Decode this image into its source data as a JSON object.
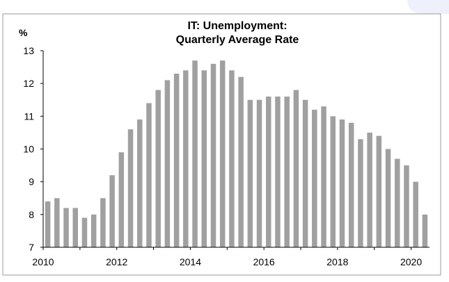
{
  "colors": {
    "bar": "#a0a0a0",
    "axis": "#000000",
    "accent": "#eef0fb"
  },
  "chart_data": {
    "type": "bar",
    "title": "IT: Unemployment:",
    "subtitle": "Quarterly Average Rate",
    "ylabel": "%",
    "xlabel": "",
    "grid": false,
    "legend": "none",
    "ylim": [
      7,
      13
    ],
    "yticks": [
      "7",
      "8",
      "9",
      "10",
      "11",
      "12",
      "13"
    ],
    "xlim": [
      2010.0,
      2020.5
    ],
    "xticks": [
      "2010",
      "2012",
      "2014",
      "2016",
      "2018",
      "2020"
    ],
    "x": [
      2010.125,
      2010.375,
      2010.625,
      2010.875,
      2011.125,
      2011.375,
      2011.625,
      2011.875,
      2012.125,
      2012.375,
      2012.625,
      2012.875,
      2013.125,
      2013.375,
      2013.625,
      2013.875,
      2014.125,
      2014.375,
      2014.625,
      2014.875,
      2015.125,
      2015.375,
      2015.625,
      2015.875,
      2016.125,
      2016.375,
      2016.625,
      2016.875,
      2017.125,
      2017.375,
      2017.625,
      2017.875,
      2018.125,
      2018.375,
      2018.625,
      2018.875,
      2019.125,
      2019.375,
      2019.625,
      2019.875,
      2020.125,
      2020.375
    ],
    "values": [
      8.4,
      8.5,
      8.2,
      8.2,
      7.9,
      8.0,
      8.5,
      9.2,
      9.9,
      10.6,
      10.9,
      11.4,
      11.8,
      12.1,
      12.3,
      12.4,
      12.7,
      12.4,
      12.6,
      12.7,
      12.4,
      12.2,
      11.5,
      11.5,
      11.6,
      11.6,
      11.6,
      11.8,
      11.5,
      11.2,
      11.3,
      11.0,
      10.9,
      10.8,
      10.3,
      10.5,
      10.4,
      10.0,
      9.7,
      9.5,
      9.0,
      8.0
    ]
  }
}
